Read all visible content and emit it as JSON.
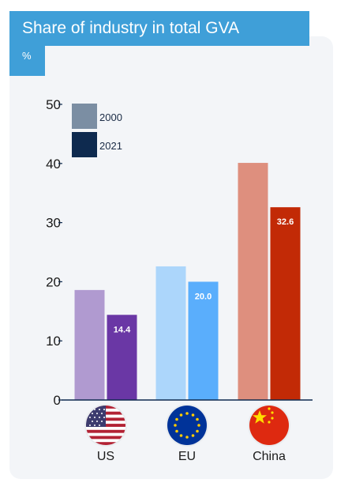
{
  "header": {
    "title": "Share of industry in total GVA",
    "unit": "%"
  },
  "chart_data": {
    "type": "bar",
    "title": "Share of industry in total GVA",
    "ylabel": "%",
    "xlabel": "",
    "categories": [
      "US",
      "EU",
      "China"
    ],
    "ylim": [
      0,
      50
    ],
    "yticks": [
      "0",
      "10",
      "20",
      "30",
      "40",
      "50"
    ],
    "grid": false,
    "legend_position": "top-left",
    "series": [
      {
        "name": "2000",
        "values": [
          18.6,
          22.6,
          40.1
        ]
      },
      {
        "name": "2021",
        "values": [
          14.4,
          20.0,
          32.6
        ]
      }
    ],
    "data_labels": [
      "14.4",
      "20.0",
      "32.6"
    ],
    "colors": {
      "US": [
        "#b09ad0",
        "#6a37a5"
      ],
      "EU": [
        "#acd6fb",
        "#5aaefc"
      ],
      "China": [
        "#de8f7e",
        "#c22a06"
      ],
      "legend": [
        "#7b8ea3",
        "#0e2a4f"
      ]
    },
    "icons": [
      "us-flag-icon",
      "eu-flag-icon",
      "china-flag-icon"
    ]
  }
}
